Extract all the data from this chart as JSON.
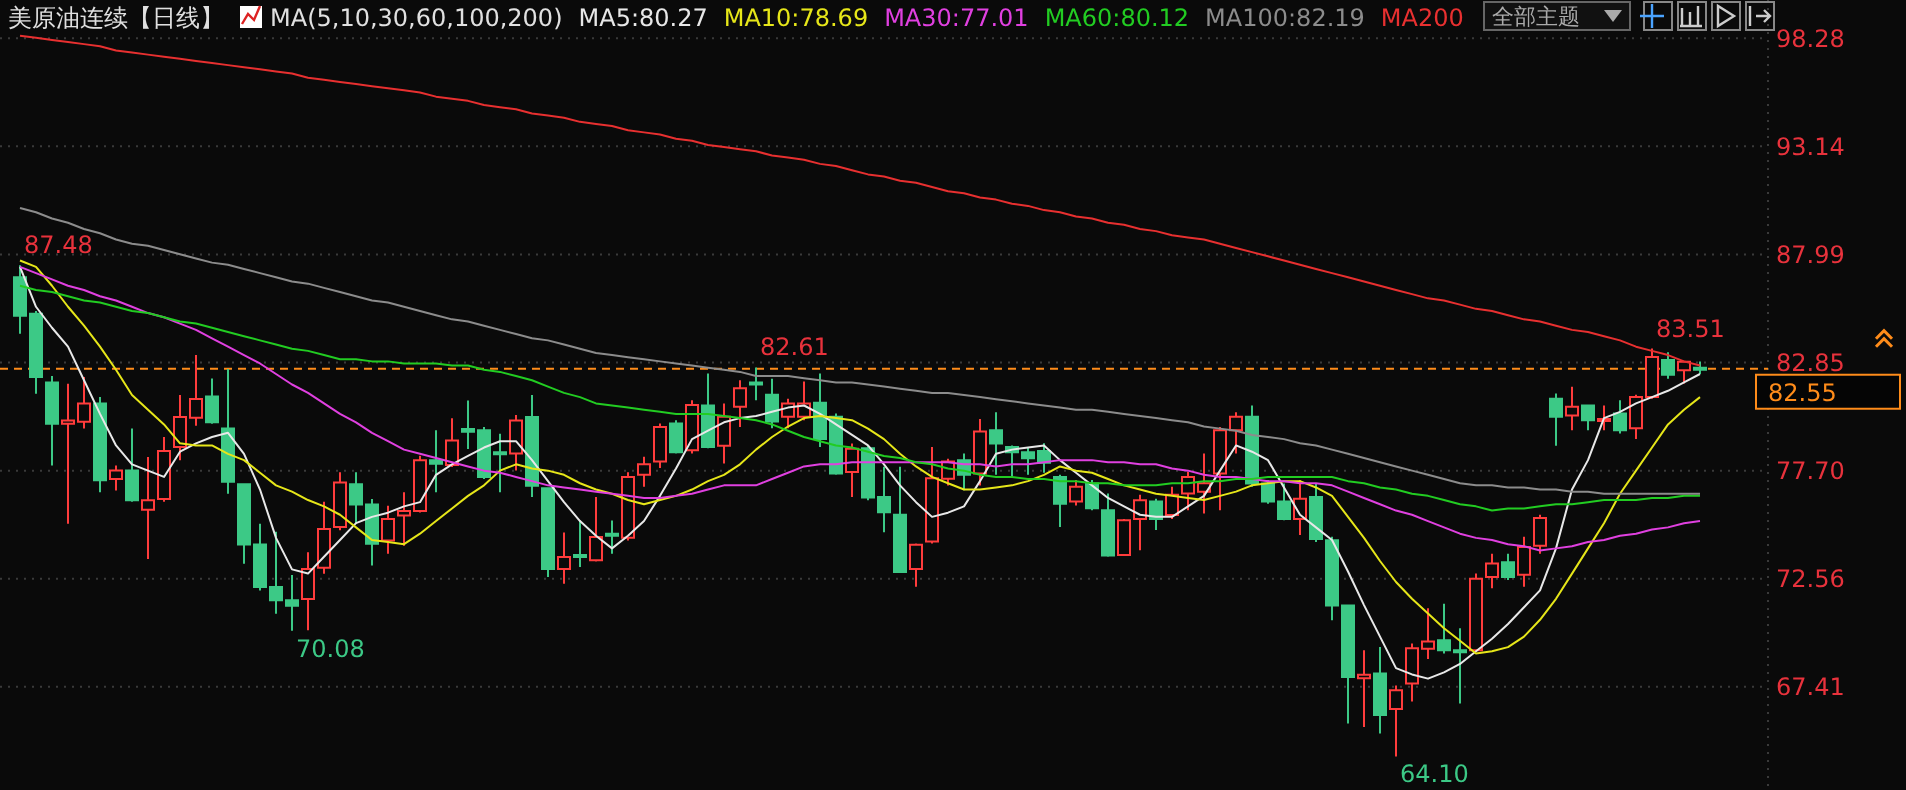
{
  "chart_data": {
    "type": "candlestick",
    "title": "美原油连续【日线】",
    "legend_title": "MA(5,10,30,60,100,200)",
    "legend": "top",
    "grid": "y",
    "categories": [
      null,
      null,
      null,
      null,
      null,
      null,
      null,
      null,
      null,
      null,
      null,
      null,
      null,
      null,
      null,
      null,
      null,
      null,
      null,
      null,
      null,
      null,
      null,
      null,
      null,
      null,
      null,
      null,
      null,
      null,
      null,
      null,
      null,
      null,
      null,
      null,
      null,
      null,
      null,
      null,
      null,
      null,
      null,
      null,
      null,
      null,
      null,
      null,
      null,
      null,
      null,
      null,
      null,
      null,
      null,
      null,
      null,
      null,
      null,
      null,
      null,
      null,
      null,
      null,
      null,
      null,
      null,
      null,
      null,
      null,
      null,
      null,
      null,
      null,
      null,
      null,
      null,
      null,
      null,
      null,
      null,
      null,
      null,
      null,
      null,
      null,
      null,
      null,
      null,
      null,
      null,
      null,
      null,
      null,
      null,
      null,
      null,
      null,
      null,
      null,
      null,
      null,
      null,
      null,
      null,
      null
    ],
    "ylim": [
      62.5,
      100.1
    ],
    "yticks": [
      98.28,
      93.14,
      87.99,
      82.85,
      {
        "value": 77.7,
        "label": "77.70"
      },
      72.56,
      67.41
    ],
    "ohlc": [
      [
        86.91,
        87.48,
        84.22,
        85.07
      ],
      [
        85.17,
        85.3,
        81.36,
        82.16
      ],
      [
        81.9,
        82.2,
        77.94,
        79.93
      ],
      [
        79.93,
        81.84,
        75.17,
        80.09
      ],
      [
        80.03,
        82.16,
        79.71,
        80.89
      ],
      [
        80.89,
        81.2,
        76.67,
        77.24
      ],
      [
        77.3,
        77.94,
        76.76,
        77.71
      ],
      [
        77.71,
        79.71,
        76.22,
        76.29
      ],
      [
        75.84,
        78.35,
        73.49,
        76.29
      ],
      [
        76.35,
        79.3,
        76.22,
        78.63
      ],
      [
        78.82,
        81.3,
        78.19,
        80.25
      ],
      [
        80.22,
        83.2,
        79.84,
        81.11
      ],
      [
        81.23,
        82.09,
        79.93,
        80.0
      ],
      [
        79.71,
        82.54,
        76.6,
        77.17
      ],
      [
        77.05,
        77.1,
        73.27,
        74.19
      ],
      [
        74.19,
        75.17,
        72.0,
        72.16
      ],
      [
        72.16,
        74.79,
        70.89,
        71.53
      ],
      [
        71.53,
        72.73,
        70.08,
        71.27
      ],
      [
        71.59,
        73.81,
        70.1,
        73.02
      ],
      [
        73.08,
        76.22,
        72.79,
        74.92
      ],
      [
        75.02,
        77.62,
        74.86,
        77.14
      ],
      [
        77.05,
        77.62,
        75.17,
        76.09
      ],
      [
        76.09,
        76.35,
        73.18,
        74.22
      ],
      [
        74.38,
        76.03,
        73.75,
        75.4
      ],
      [
        75.56,
        76.67,
        74.13,
        75.78
      ],
      [
        75.78,
        78.41,
        75.71,
        78.19
      ],
      [
        78.19,
        79.62,
        76.67,
        78.03
      ],
      [
        77.97,
        80.19,
        77.87,
        79.14
      ],
      [
        79.68,
        81.04,
        78.73,
        79.55
      ],
      [
        79.62,
        79.78,
        77.3,
        77.4
      ],
      [
        78.57,
        79.46,
        76.67,
        78.51
      ],
      [
        78.51,
        80.35,
        77.71,
        80.09
      ],
      [
        80.25,
        81.3,
        76.44,
        76.98
      ],
      [
        76.86,
        76.9,
        72.64,
        73.02
      ],
      [
        73.02,
        74.76,
        72.32,
        73.59
      ],
      [
        73.68,
        75.33,
        73.11,
        73.65
      ],
      [
        73.43,
        76.44,
        73.37,
        74.54
      ],
      [
        74.7,
        75.33,
        73.75,
        74.65
      ],
      [
        74.51,
        77.62,
        74.38,
        77.4
      ],
      [
        77.5,
        78.36,
        76.93,
        78.01
      ],
      [
        78.13,
        79.94,
        77.82,
        79.78
      ],
      [
        79.94,
        80.1,
        78.51,
        78.58
      ],
      [
        78.67,
        81.05,
        78.51,
        80.83
      ],
      [
        80.8,
        82.32,
        78.77,
        78.83
      ],
      [
        78.89,
        80.89,
        78.04,
        80.26
      ],
      [
        80.74,
        82.0,
        79.78,
        81.62
      ],
      [
        81.9,
        82.61,
        81.05,
        81.8
      ],
      [
        81.31,
        82.07,
        79.72,
        80.04
      ],
      [
        80.26,
        81.12,
        79.72,
        80.89
      ],
      [
        80.26,
        81.94,
        80.1,
        80.89
      ],
      [
        80.93,
        82.32,
        78.83,
        79.21
      ],
      [
        80.26,
        80.42,
        77.5,
        77.56
      ],
      [
        77.63,
        78.99,
        76.45,
        78.74
      ],
      [
        78.77,
        78.9,
        76.29,
        76.42
      ],
      [
        76.45,
        77.88,
        74.77,
        75.72
      ],
      [
        75.6,
        77.88,
        72.87,
        72.87
      ],
      [
        73.02,
        74.23,
        72.17,
        74.17
      ],
      [
        74.33,
        78.83,
        74.23,
        77.34
      ],
      [
        77.31,
        78.26,
        76.99,
        78.13
      ],
      [
        78.2,
        78.51,
        76.77,
        77.5
      ],
      [
        77.56,
        80.16,
        76.99,
        79.56
      ],
      [
        79.62,
        80.48,
        77.5,
        78.99
      ],
      [
        78.83,
        78.9,
        77.4,
        78.58
      ],
      [
        78.58,
        78.83,
        77.5,
        78.29
      ],
      [
        78.64,
        79.0,
        77.6,
        78.07
      ],
      [
        77.4,
        77.5,
        75.02,
        76.13
      ],
      [
        76.23,
        77.25,
        76.04,
        76.93
      ],
      [
        77.09,
        77.25,
        75.82,
        75.91
      ],
      [
        75.82,
        76.61,
        73.6,
        73.66
      ],
      [
        73.69,
        75.4,
        73.66,
        75.34
      ],
      [
        75.4,
        76.55,
        73.91,
        76.29
      ],
      [
        76.23,
        76.36,
        74.87,
        75.4
      ],
      [
        75.59,
        76.93,
        75.4,
        76.55
      ],
      [
        76.61,
        77.63,
        75.82,
        77.4
      ],
      [
        76.7,
        78.51,
        75.66,
        77.1
      ],
      [
        77.56,
        79.78,
        75.82,
        79.62
      ],
      [
        79.62,
        80.48,
        78.51,
        80.26
      ],
      [
        80.26,
        80.8,
        76.93,
        77.09
      ],
      [
        77.09,
        77.25,
        76.13,
        76.23
      ],
      [
        76.23,
        77.09,
        75.34,
        75.4
      ],
      [
        75.4,
        77.25,
        74.64,
        76.36
      ],
      [
        76.45,
        77.09,
        74.3,
        74.45
      ],
      [
        74.39,
        74.55,
        70.58,
        71.28
      ],
      [
        71.28,
        71.28,
        65.66,
        67.88
      ],
      [
        67.82,
        69.15,
        65.5,
        67.98
      ],
      [
        68.04,
        69.31,
        65.19,
        66.07
      ],
      [
        66.36,
        67.47,
        64.1,
        67.25
      ],
      [
        67.57,
        69.47,
        66.71,
        69.25
      ],
      [
        69.22,
        71.15,
        68.74,
        69.57
      ],
      [
        69.63,
        71.37,
        69.0,
        69.15
      ],
      [
        69.15,
        70.2,
        66.62,
        69.12
      ],
      [
        69.15,
        72.8,
        69.06,
        72.55
      ],
      [
        72.64,
        73.75,
        72.1,
        73.28
      ],
      [
        73.34,
        73.75,
        72.49,
        72.64
      ],
      [
        72.74,
        74.55,
        72.17,
        74.07
      ],
      [
        74.13,
        75.6,
        73.75,
        75.44
      ],
      [
        81.12,
        81.37,
        78.89,
        80.26
      ],
      [
        80.32,
        81.69,
        79.62,
        80.74
      ],
      [
        80.8,
        80.8,
        79.62,
        80.1
      ],
      [
        80.16,
        80.8,
        79.62,
        80.16
      ],
      [
        80.42,
        81.05,
        79.47,
        79.62
      ],
      [
        79.72,
        81.31,
        79.21,
        81.21
      ],
      [
        81.21,
        83.51,
        81.12,
        83.11
      ],
      [
        82.96,
        83.34,
        82.07,
        82.26
      ],
      [
        82.48,
        82.9,
        81.85,
        82.88
      ],
      [
        82.6,
        82.9,
        82.3,
        82.55
      ]
    ],
    "series": [
      {
        "type": "line",
        "name": "MA5:80.27",
        "color": "#e8e8e8",
        "values": [
          87.4,
          85.5,
          84.5,
          83.6,
          82.0,
          80.4,
          78.9,
          78.0,
          77.7,
          77.4,
          78.6,
          79.0,
          79.3,
          79.5,
          78.5,
          76.8,
          74.5,
          73.0,
          72.8,
          73.6,
          74.4,
          75.2,
          75.5,
          75.7,
          76.0,
          76.2,
          77.5,
          78.0,
          78.4,
          78.8,
          79.1,
          79.1,
          78.2,
          77.2,
          76.2,
          75.3,
          74.6,
          74.0,
          74.6,
          75.3,
          76.5,
          77.8,
          79.2,
          79.6,
          80.0,
          80.2,
          80.3,
          80.5,
          80.7,
          80.8,
          80.4,
          79.9,
          79.4,
          78.9,
          78.0,
          77.0,
          76.2,
          75.5,
          75.7,
          76.0,
          77.2,
          78.5,
          78.7,
          78.8,
          78.9,
          78.2,
          77.6,
          77.0,
          76.4,
          76.0,
          75.6,
          75.5,
          75.5,
          76.0,
          76.5,
          77.7,
          78.9,
          78.6,
          78.2,
          76.9,
          75.6,
          75.0,
          74.4,
          72.9,
          71.3,
          69.8,
          68.3,
          68.0,
          67.8,
          68.1,
          68.5,
          69.1,
          69.7,
          70.4,
          71.2,
          72.0,
          74.0,
          76.8,
          78.2,
          80.2,
          80.5,
          80.9,
          81.2,
          81.5,
          81.9,
          82.3
        ]
      },
      {
        "type": "line",
        "name": "MA10:78.69",
        "color": "#e6e619",
        "values": [
          87.7,
          87.4,
          86.5,
          85.5,
          84.6,
          83.6,
          82.5,
          81.3,
          80.6,
          79.9,
          79.0,
          78.9,
          78.9,
          78.5,
          78.2,
          77.6,
          77.0,
          76.7,
          76.3,
          76.0,
          75.6,
          75.0,
          74.4,
          74.3,
          74.2,
          74.7,
          75.3,
          75.9,
          76.5,
          77.0,
          77.7,
          78.0,
          77.8,
          77.7,
          77.5,
          77.1,
          76.8,
          76.6,
          76.3,
          76.1,
          76.3,
          76.5,
          76.8,
          77.2,
          77.5,
          78.0,
          78.7,
          79.3,
          79.8,
          80.2,
          80.3,
          80.2,
          80.1,
          79.7,
          79.2,
          78.5,
          77.9,
          77.4,
          77.1,
          76.8,
          76.8,
          76.9,
          77.0,
          77.2,
          77.5,
          77.9,
          77.7,
          77.6,
          77.3,
          77.0,
          76.8,
          76.6,
          76.5,
          76.4,
          76.3,
          76.5,
          76.7,
          77.0,
          77.1,
          77.2,
          77.2,
          76.9,
          76.5,
          75.5,
          74.5,
          73.4,
          72.4,
          71.6,
          70.9,
          70.2,
          69.6,
          69.0,
          69.1,
          69.3,
          69.8,
          70.6,
          71.6,
          72.8,
          74.0,
          75.2,
          76.6,
          77.7,
          78.8,
          79.9,
          80.6,
          81.2
        ]
      },
      {
        "type": "line",
        "name": "MA30:77.01",
        "color": "#e040e0",
        "values": [
          87.4,
          87.1,
          86.8,
          86.5,
          86.3,
          86.0,
          85.8,
          85.5,
          85.2,
          85.0,
          84.7,
          84.4,
          84.0,
          83.6,
          83.2,
          82.8,
          82.3,
          81.8,
          81.4,
          80.9,
          80.4,
          80.0,
          79.5,
          79.1,
          78.7,
          78.5,
          78.3,
          78.1,
          77.9,
          77.7,
          77.6,
          77.4,
          77.2,
          77.0,
          76.9,
          76.8,
          76.7,
          76.6,
          76.5,
          76.4,
          76.4,
          76.5,
          76.6,
          76.8,
          77.0,
          77.0,
          77.0,
          77.3,
          77.6,
          77.9,
          78.0,
          78.0,
          78.1,
          78.1,
          78.1,
          78.1,
          78.1,
          78.1,
          78.1,
          78.0,
          78.0,
          77.9,
          78.0,
          78.0,
          78.1,
          78.2,
          78.2,
          78.2,
          78.1,
          78.1,
          78.0,
          78.0,
          77.8,
          77.7,
          77.5,
          77.4,
          77.4,
          77.3,
          77.2,
          77.2,
          77.1,
          77.1,
          77.0,
          76.7,
          76.4,
          76.1,
          75.8,
          75.6,
          75.3,
          75.0,
          74.7,
          74.5,
          74.4,
          74.2,
          74.1,
          73.9,
          74.0,
          74.1,
          74.3,
          74.4,
          74.6,
          74.7,
          74.9,
          75.0,
          75.2,
          75.3
        ]
      },
      {
        "type": "line",
        "name": "MA60:80.12",
        "color": "#22cc22",
        "values": [
          86.5,
          86.3,
          86.2,
          86.0,
          85.8,
          85.7,
          85.5,
          85.3,
          85.2,
          85.0,
          84.8,
          84.7,
          84.5,
          84.3,
          84.1,
          83.9,
          83.7,
          83.5,
          83.4,
          83.2,
          83.0,
          83.0,
          82.9,
          82.9,
          82.8,
          82.8,
          82.8,
          82.7,
          82.7,
          82.5,
          82.4,
          82.2,
          82.0,
          81.7,
          81.4,
          81.2,
          80.9,
          80.8,
          80.7,
          80.6,
          80.5,
          80.4,
          80.4,
          80.4,
          80.3,
          80.2,
          80.1,
          79.9,
          79.6,
          79.3,
          79.1,
          78.9,
          78.8,
          78.6,
          78.4,
          78.3,
          78.1,
          78.0,
          77.8,
          77.7,
          77.5,
          77.4,
          77.4,
          77.3,
          77.3,
          77.2,
          77.2,
          77.1,
          77.1,
          77.0,
          77.0,
          77.0,
          77.1,
          77.1,
          77.2,
          77.2,
          77.3,
          77.3,
          77.4,
          77.4,
          77.4,
          77.4,
          77.4,
          77.2,
          77.1,
          76.9,
          76.8,
          76.6,
          76.5,
          76.3,
          76.1,
          76.0,
          75.8,
          75.9,
          75.9,
          76.0,
          76.1,
          76.1,
          76.2,
          76.3,
          76.3,
          76.3,
          76.4,
          76.4,
          76.5,
          76.5
        ]
      },
      {
        "type": "line",
        "name": "MA100:82.19",
        "color": "#8c8c8c",
        "values": [
          90.2,
          90.0,
          89.7,
          89.5,
          89.2,
          89.0,
          88.7,
          88.5,
          88.4,
          88.2,
          88.0,
          87.8,
          87.6,
          87.5,
          87.3,
          87.1,
          86.9,
          86.7,
          86.6,
          86.4,
          86.2,
          86.0,
          85.8,
          85.7,
          85.5,
          85.3,
          85.1,
          84.9,
          84.8,
          84.6,
          84.4,
          84.2,
          84.0,
          83.9,
          83.7,
          83.5,
          83.3,
          83.2,
          83.1,
          83.0,
          82.9,
          82.8,
          82.7,
          82.6,
          82.5,
          82.4,
          82.2,
          82.2,
          82.2,
          82.1,
          82.0,
          81.9,
          81.9,
          81.8,
          81.7,
          81.6,
          81.5,
          81.4,
          81.4,
          81.3,
          81.2,
          81.1,
          81.0,
          80.9,
          80.8,
          80.7,
          80.6,
          80.6,
          80.5,
          80.4,
          80.3,
          80.2,
          80.1,
          80.0,
          79.8,
          79.7,
          79.6,
          79.4,
          79.3,
          79.2,
          79.0,
          78.9,
          78.7,
          78.5,
          78.3,
          78.1,
          77.9,
          77.7,
          77.5,
          77.3,
          77.1,
          77.0,
          77.0,
          76.9,
          76.9,
          76.8,
          76.8,
          76.7,
          76.7,
          76.6,
          76.6,
          76.6,
          76.6,
          76.6,
          76.6,
          76.6
        ]
      },
      {
        "type": "line",
        "name": "MA200",
        "color": "#e83030",
        "values": [
          98.4,
          98.3,
          98.2,
          98.1,
          98.0,
          97.9,
          97.7,
          97.6,
          97.5,
          97.4,
          97.3,
          97.2,
          97.1,
          97.0,
          96.9,
          96.8,
          96.7,
          96.6,
          96.4,
          96.3,
          96.2,
          96.1,
          96.0,
          95.9,
          95.8,
          95.7,
          95.5,
          95.4,
          95.3,
          95.1,
          95.0,
          94.9,
          94.7,
          94.6,
          94.5,
          94.3,
          94.2,
          94.1,
          93.9,
          93.8,
          93.7,
          93.5,
          93.4,
          93.2,
          93.1,
          93.0,
          92.9,
          92.7,
          92.6,
          92.5,
          92.3,
          92.2,
          92.0,
          91.8,
          91.7,
          91.5,
          91.4,
          91.2,
          91.0,
          90.9,
          90.7,
          90.6,
          90.4,
          90.3,
          90.1,
          90.0,
          89.8,
          89.7,
          89.5,
          89.4,
          89.2,
          89.1,
          88.9,
          88.8,
          88.7,
          88.5,
          88.3,
          88.1,
          87.9,
          87.7,
          87.5,
          87.3,
          87.1,
          86.9,
          86.7,
          86.5,
          86.3,
          86.1,
          85.9,
          85.8,
          85.6,
          85.4,
          85.3,
          85.1,
          84.9,
          84.8,
          84.6,
          84.4,
          84.3,
          84.1,
          83.9,
          83.6,
          83.4,
          83.2,
          82.9,
          82.7
        ]
      }
    ],
    "ref_lines": [
      {
        "axis": "y",
        "value": 82.55,
        "label": "82.55",
        "color": "#ff8c1a",
        "line_style": "dashed"
      }
    ],
    "annotations": [
      "87.48",
      "70.08",
      "82.61",
      "64.10",
      "83.51",
      "全部主题"
    ]
  }
}
